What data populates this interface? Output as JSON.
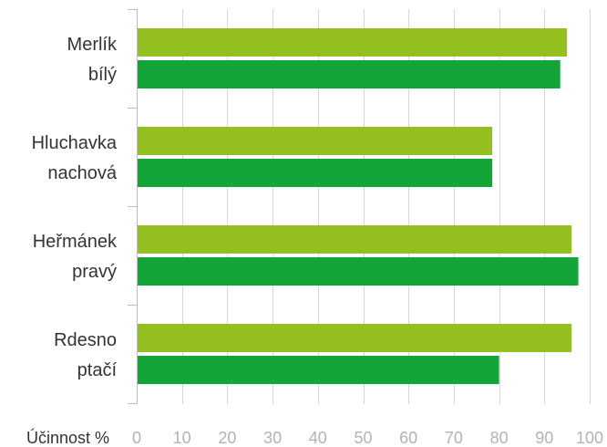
{
  "chart_data": {
    "type": "bar",
    "orientation": "horizontal",
    "categories": [
      [
        "Merlík",
        "bílý"
      ],
      [
        "Hluchavka",
        "nachová"
      ],
      [
        "Heřmánek",
        "pravý"
      ],
      [
        "Rdesno",
        "ptačí"
      ]
    ],
    "series": [
      {
        "color": "#93c01f",
        "values": [
          95,
          78.5,
          96,
          96
        ]
      },
      {
        "color": "#13a538",
        "values": [
          93.5,
          78.5,
          97.5,
          80
        ]
      }
    ],
    "xlabel": "Účinnost %",
    "xlim": [
      0,
      100
    ],
    "xticks": [
      "0",
      "10",
      "20",
      "30",
      "40",
      "50",
      "60",
      "70",
      "80",
      "90",
      "100"
    ],
    "grid": true,
    "legend": "none"
  }
}
